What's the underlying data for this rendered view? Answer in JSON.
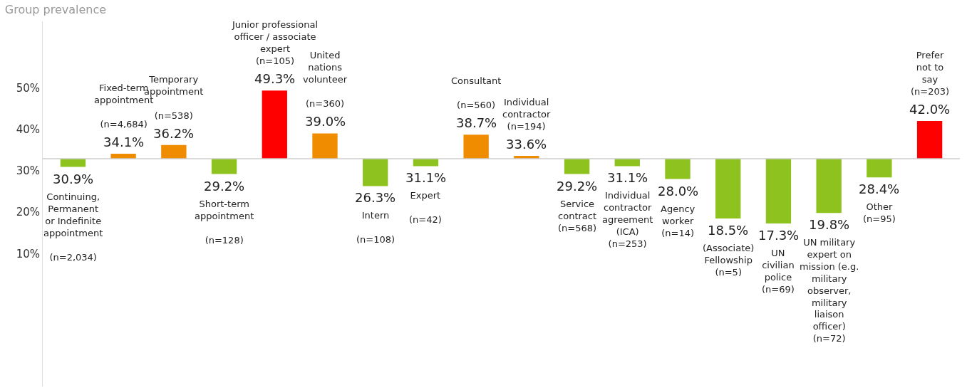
{
  "chart_data": {
    "type": "bar",
    "title": "Group prevalence",
    "categories": [
      "Continuing,\nPermanent\nor Indefinite\nappointment\n\n(n=2,034)",
      "Fixed-term\nappointment\n\n(n=4,684)",
      "Temporary\nappointment\n\n(n=538)",
      "Short-term\nappointment\n\n(n=128)",
      "Junior professional\nofficer / associate\nexpert\n(n=105)",
      "United\nnations\nvolunteer\n\n(n=360)",
      "Intern\n\n(n=108)",
      "Expert\n\n(n=42)",
      "Consultant\n\n(n=560)",
      "Individual\ncontractor\n(n=194)",
      "Service\ncontract\n(n=568)",
      "Individual\ncontractor\nagreement\n(ICA)\n(n=253)",
      "Agency\nworker\n(n=14)",
      "(Associate)\nFellowship\n(n=5)",
      "UN\ncivilian\npolice\n(n=69)",
      "UN military\nexpert on\nmission (e.g.\nmilitary\nobserver,\nmilitary\nliaison\nofficer)\n(n=72)",
      "Other\n(n=95)",
      "Prefer\nnot to\nsay\n(n=203)"
    ],
    "values": [
      -2.0,
      1.2,
      3.3,
      -3.7,
      16.4,
      6.1,
      -6.6,
      -1.8,
      5.8,
      0.7,
      -3.7,
      -1.8,
      -4.9,
      -14.4,
      -15.6,
      -13.1,
      -4.5,
      9.1
    ],
    "base": [
      32.9,
      32.9,
      32.9,
      32.9,
      32.9,
      32.9,
      32.9,
      32.9,
      32.9,
      32.9,
      32.9,
      32.9,
      32.9,
      32.9,
      32.9,
      32.9,
      32.9,
      32.9
    ],
    "value_labels": [
      "30.9%",
      "34.1%",
      "36.2%",
      "29.2%",
      "49.3%",
      "39.0%",
      "26.3%",
      "31.1%",
      "38.7%",
      "33.6%",
      "29.2%",
      "31.1%",
      "28.0%",
      "18.5%",
      "17.3%",
      "19.8%",
      "28.4%",
      "42.0%"
    ],
    "colors": [
      "#8dc21f",
      "#ef8c00",
      "#ef8c00",
      "#8dc21f",
      "#ff0000",
      "#ef8c00",
      "#8dc21f",
      "#8dc21f",
      "#ef8c00",
      "#ef8c00",
      "#8dc21f",
      "#8dc21f",
      "#8dc21f",
      "#8dc21f",
      "#8dc21f",
      "#8dc21f",
      "#8dc21f",
      "#ff0000"
    ],
    "ref_lines": [
      {
        "axis": "y",
        "value": 32.9,
        "color": "#cccccc"
      }
    ],
    "ylim": [
      -22,
      66
    ],
    "yticks": [
      {
        "value": 10,
        "label": "10%"
      },
      {
        "value": 20,
        "label": "20%"
      },
      {
        "value": 30,
        "label": "30%"
      },
      {
        "value": 40,
        "label": "40%"
      },
      {
        "value": 50,
        "label": "50%"
      }
    ],
    "tick_labels": "y",
    "legend": false
  }
}
